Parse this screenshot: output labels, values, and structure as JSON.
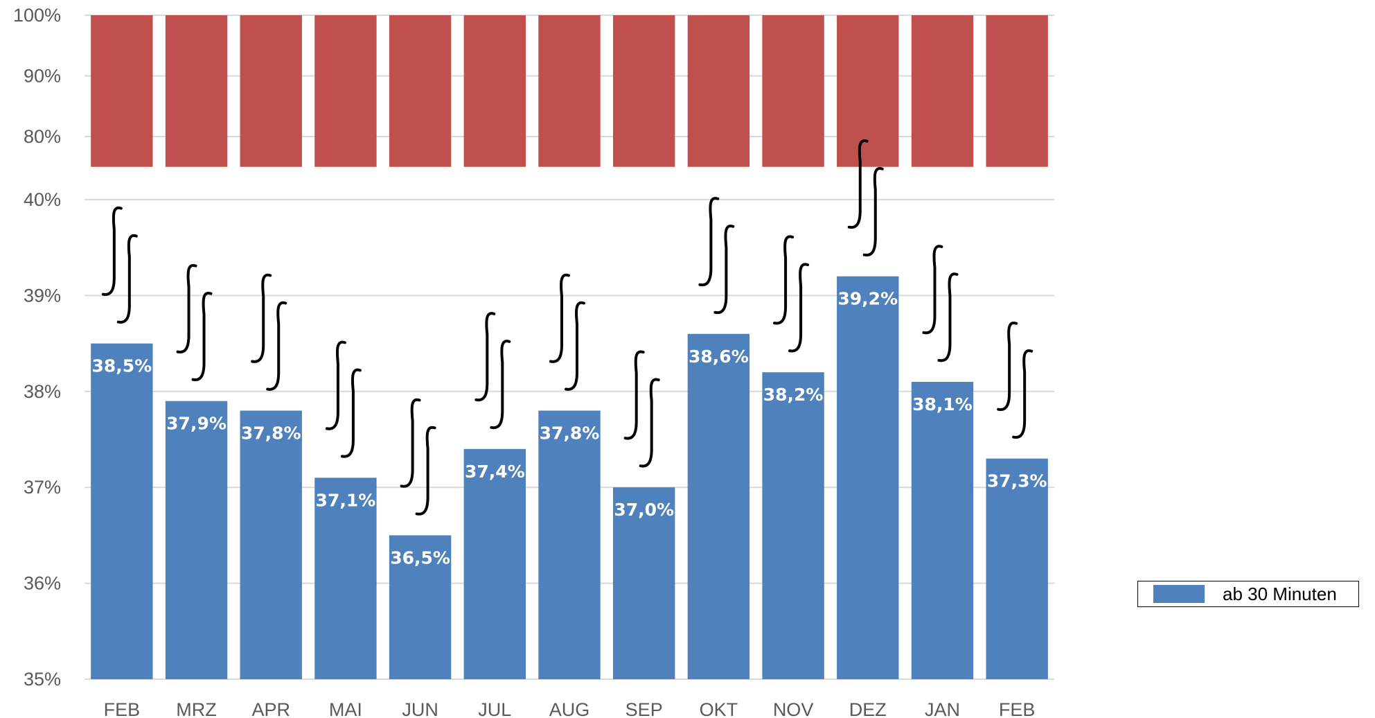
{
  "chart_data": {
    "type": "bar",
    "title": "",
    "xlabel": "",
    "ylabel": "",
    "categories": [
      "FEB",
      "MRZ",
      "APR",
      "MAI",
      "JUN",
      "JUL",
      "AUG",
      "SEP",
      "OKT",
      "NOV",
      "DEZ",
      "JAN",
      "FEB"
    ],
    "series": [
      {
        "name": "ab 30 Minuten",
        "color": "#4f81bd",
        "values": [
          38.5,
          37.9,
          37.8,
          37.1,
          36.5,
          37.4,
          37.8,
          37.0,
          38.6,
          38.2,
          39.2,
          38.1,
          37.3
        ],
        "data_labels": [
          "38,5%",
          "37,9%",
          "37,8%",
          "37,1%",
          "36,5%",
          "37,4%",
          "37,8%",
          "37,0%",
          "38,6%",
          "38,2%",
          "39,2%",
          "38,1%",
          "37,3%"
        ]
      },
      {
        "name": "",
        "color": "#c0504d",
        "values": [
          100,
          100,
          100,
          100,
          100,
          100,
          100,
          100,
          100,
          100,
          100,
          100,
          100
        ]
      }
    ],
    "axis_break": true,
    "upper_ylim": [
      75,
      100
    ],
    "upper_ticks": [
      "100%",
      "90%",
      "80%"
    ],
    "upper_tick_values": [
      100,
      90,
      80
    ],
    "lower_ylim": [
      35,
      40
    ],
    "lower_ticks": [
      "40%",
      "39%",
      "38%",
      "37%",
      "36%",
      "35%"
    ],
    "lower_tick_values": [
      40,
      39,
      38,
      37,
      36,
      35
    ],
    "grid": true,
    "legend_position": "right"
  },
  "legend": {
    "label": "ab 30 Minuten",
    "color": "#4f81bd"
  }
}
